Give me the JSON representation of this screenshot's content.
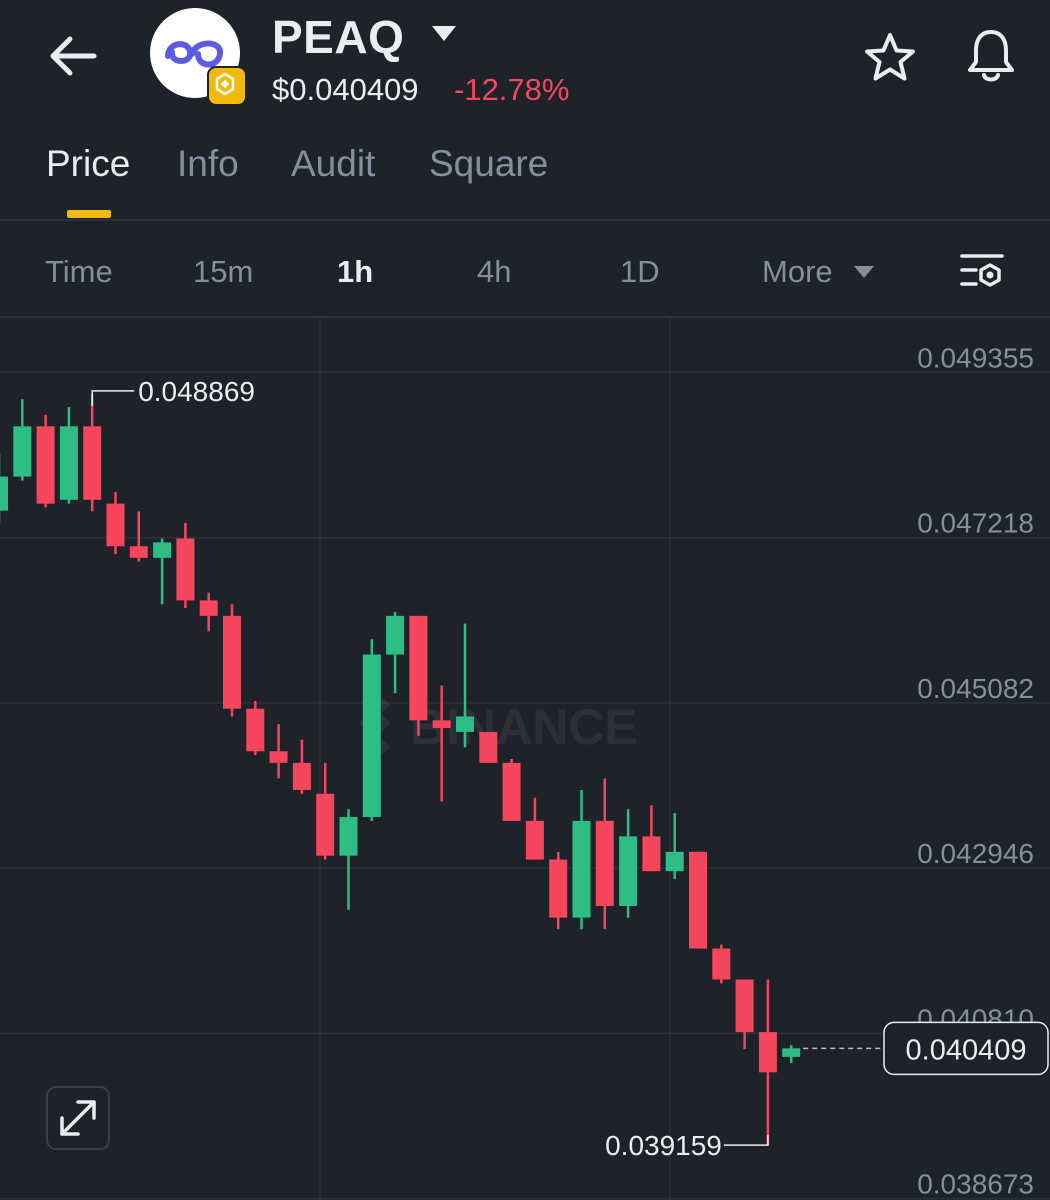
{
  "header": {
    "coin_name": "PEAQ",
    "price": "$0.040409",
    "change": "-12.78%",
    "icons": {
      "back": "back-arrow-icon",
      "dropdown": "caret-down-icon",
      "logo": "peaq-logo-icon",
      "badge": "bnb-badge-icon",
      "favorite": "star-icon",
      "alert": "bell-icon"
    }
  },
  "tabs": [
    {
      "label": "Price",
      "active": true
    },
    {
      "label": "Info",
      "active": false
    },
    {
      "label": "Audit",
      "active": false
    },
    {
      "label": "Square",
      "active": false
    }
  ],
  "intervals": [
    {
      "label": "Time",
      "active": false
    },
    {
      "label": "15m",
      "active": false
    },
    {
      "label": "1h",
      "active": true
    },
    {
      "label": "4h",
      "active": false
    },
    {
      "label": "1D",
      "active": false
    },
    {
      "label": "More",
      "active": false
    }
  ],
  "colors": {
    "background": "#1e2329",
    "up": "#2ebd85",
    "down": "#f6465d",
    "grid": "#2b3139",
    "text_secondary": "#848e9c",
    "accent": "#f0b90b"
  },
  "chart_data": {
    "type": "candlestick",
    "interval": "1h",
    "watermark": "BINANCE",
    "y_ticks": [
      "0.049355",
      "0.047218",
      "0.045082",
      "0.042946",
      "0.040810",
      "0.038673"
    ],
    "ylim": [
      0.03845,
      0.04985
    ],
    "high_label": "0.048869",
    "low_label": "0.039159",
    "current_price": "0.040409",
    "candles": [
      {
        "o": 0.04736,
        "h": 0.0481,
        "c": 0.0478,
        "l": 0.0472
      },
      {
        "o": 0.0478,
        "h": 0.0488,
        "c": 0.04845,
        "l": 0.04775
      },
      {
        "o": 0.04845,
        "h": 0.0486,
        "c": 0.04745,
        "l": 0.0474
      },
      {
        "o": 0.0475,
        "h": 0.0487,
        "c": 0.04845,
        "l": 0.04745
      },
      {
        "o": 0.04845,
        "h": 0.04887,
        "c": 0.0475,
        "l": 0.04735
      },
      {
        "o": 0.04745,
        "h": 0.0476,
        "c": 0.0469,
        "l": 0.0468
      },
      {
        "o": 0.0469,
        "h": 0.04735,
        "c": 0.04675,
        "l": 0.0467
      },
      {
        "o": 0.04675,
        "h": 0.047,
        "c": 0.04695,
        "l": 0.04615
      },
      {
        "o": 0.047,
        "h": 0.0472,
        "c": 0.0462,
        "l": 0.0461
      },
      {
        "o": 0.0462,
        "h": 0.0463,
        "c": 0.046,
        "l": 0.0458
      },
      {
        "o": 0.046,
        "h": 0.04615,
        "c": 0.0448,
        "l": 0.0447
      },
      {
        "o": 0.0448,
        "h": 0.0449,
        "c": 0.04425,
        "l": 0.0442
      },
      {
        "o": 0.04425,
        "h": 0.0446,
        "c": 0.0441,
        "l": 0.0439
      },
      {
        "o": 0.0441,
        "h": 0.0444,
        "c": 0.04375,
        "l": 0.0437
      },
      {
        "o": 0.0437,
        "h": 0.0441,
        "c": 0.0429,
        "l": 0.04285
      },
      {
        "o": 0.0429,
        "h": 0.0435,
        "c": 0.0434,
        "l": 0.0422
      },
      {
        "o": 0.0434,
        "h": 0.0457,
        "c": 0.0455,
        "l": 0.04335
      },
      {
        "o": 0.0455,
        "h": 0.04605,
        "c": 0.046,
        "l": 0.045
      },
      {
        "o": 0.046,
        "h": 0.046,
        "c": 0.04465,
        "l": 0.04445
      },
      {
        "o": 0.04465,
        "h": 0.0451,
        "c": 0.04455,
        "l": 0.0436
      },
      {
        "o": 0.0445,
        "h": 0.0459,
        "c": 0.0447,
        "l": 0.0443
      },
      {
        "o": 0.0445,
        "h": 0.0445,
        "c": 0.0441,
        "l": 0.0441
      },
      {
        "o": 0.0441,
        "h": 0.04415,
        "c": 0.04335,
        "l": 0.04335
      },
      {
        "o": 0.04335,
        "h": 0.04365,
        "c": 0.04285,
        "l": 0.04285
      },
      {
        "o": 0.04285,
        "h": 0.04295,
        "c": 0.0421,
        "l": 0.04195
      },
      {
        "o": 0.0421,
        "h": 0.04375,
        "c": 0.04335,
        "l": 0.04195
      },
      {
        "o": 0.04335,
        "h": 0.0439,
        "c": 0.04225,
        "l": 0.04195
      },
      {
        "o": 0.04225,
        "h": 0.0435,
        "c": 0.04315,
        "l": 0.0421
      },
      {
        "o": 0.04315,
        "h": 0.04355,
        "c": 0.0427,
        "l": 0.0427
      },
      {
        "o": 0.0427,
        "h": 0.04345,
        "c": 0.04295,
        "l": 0.0426
      },
      {
        "o": 0.04295,
        "h": 0.04295,
        "c": 0.0417,
        "l": 0.0417
      },
      {
        "o": 0.0417,
        "h": 0.04175,
        "c": 0.0413,
        "l": 0.04125
      },
      {
        "o": 0.0413,
        "h": 0.0413,
        "c": 0.04062,
        "l": 0.0404
      },
      {
        "o": 0.04062,
        "h": 0.0413,
        "c": 0.0401,
        "l": 0.03916
      },
      {
        "o": 0.0403,
        "h": 0.04045,
        "c": 0.04041,
        "l": 0.04022
      }
    ]
  }
}
